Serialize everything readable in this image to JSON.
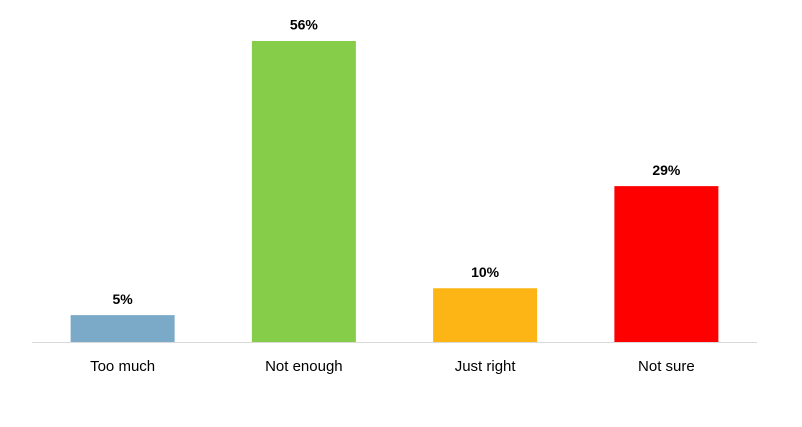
{
  "chart_data": {
    "type": "bar",
    "categories": [
      "Too much",
      "Not enough",
      "Just right",
      "Not sure"
    ],
    "values": [
      5,
      56,
      10,
      29
    ],
    "value_labels": [
      "5%",
      "56%",
      "10%",
      "29%"
    ],
    "colors": [
      "#7aaac8",
      "#86cd4a",
      "#fdb515",
      "#ff0000"
    ]
  }
}
